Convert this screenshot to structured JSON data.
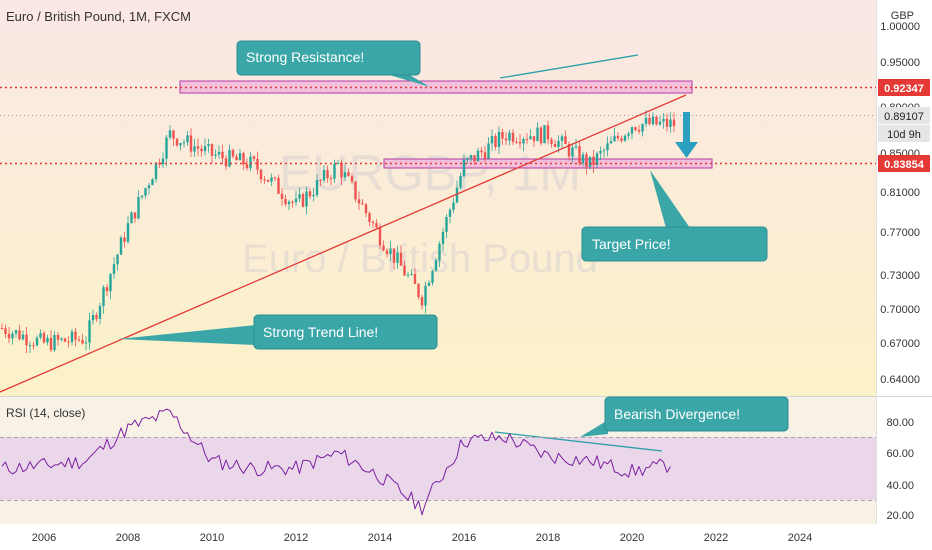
{
  "header": {
    "title": "Euro / British Pound, 1M, FXCM",
    "currency": "GBP",
    "watermark_symbol": "EURGBP, 1M",
    "watermark_name": "Euro / British Pound"
  },
  "price_axis": {
    "ticks": [
      "0.64000",
      "0.67000",
      "0.70000",
      "0.73000",
      "0.77000",
      "0.81000",
      "0.85000",
      "0.89000",
      "0.95000",
      "1.00000"
    ]
  },
  "rsi_axis": {
    "ticks": [
      "20.00",
      "40.00",
      "60.00",
      "80.00"
    ]
  },
  "time_axis": {
    "labels": [
      "2006",
      "2008",
      "2010",
      "2012",
      "2014",
      "2016",
      "2018",
      "2020",
      "2022",
      "2024"
    ]
  },
  "price_tags": {
    "resistance": "0.92347",
    "last": "0.89107",
    "countdown": "10d 9h",
    "support": "0.83854"
  },
  "rsi": {
    "title": "RSI (14, close)"
  },
  "annotations": {
    "resistance": "Strong Resistance!",
    "target": "Target Price!",
    "trend": "Strong Trend Line!",
    "divergence": "Bearish Divergence!"
  },
  "colors": {
    "up": "#26a69a",
    "down": "#ef5350",
    "trendline": "#e53935",
    "level_line": "#e53935",
    "zone_fill": "#f1b9dc",
    "zone_stroke": "#b23aa0",
    "callout": "#3aa6a8",
    "rsi_line": "#7b1fa2",
    "arrow": "#2a9fc0",
    "bg_top": "#fbe7e6",
    "bg_bottom": "#fbf2c8"
  },
  "chart_data": [
    {
      "type": "candlestick",
      "title": "Euro / British Pound, 1M, FXCM",
      "x": [
        "2005",
        "2006",
        "2007",
        "2008",
        "2009",
        "2010",
        "2011",
        "2012",
        "2013",
        "2014",
        "2015",
        "2016",
        "2017",
        "2018",
        "2019",
        "2020",
        "2021"
      ],
      "close": [
        0.69,
        0.675,
        0.68,
        0.79,
        0.88,
        0.86,
        0.85,
        0.81,
        0.85,
        0.78,
        0.72,
        0.85,
        0.88,
        0.88,
        0.85,
        0.89,
        0.89
      ],
      "ylabel": "GBP",
      "ylim": [
        0.62,
        1.0
      ],
      "levels": {
        "resistance": 0.92347,
        "support": 0.83854,
        "last": 0.89107
      }
    },
    {
      "type": "line",
      "title": "RSI (14, close)",
      "x": [
        "2005",
        "2006",
        "2007",
        "2008",
        "2009",
        "2010",
        "2011",
        "2012",
        "2013",
        "2014",
        "2015",
        "2016",
        "2017",
        "2018",
        "2019",
        "2020",
        "2021"
      ],
      "values": [
        50,
        52,
        55,
        76,
        86,
        55,
        50,
        50,
        60,
        45,
        25,
        68,
        70,
        58,
        55,
        48,
        53
      ],
      "ylim": [
        15,
        90
      ]
    }
  ]
}
